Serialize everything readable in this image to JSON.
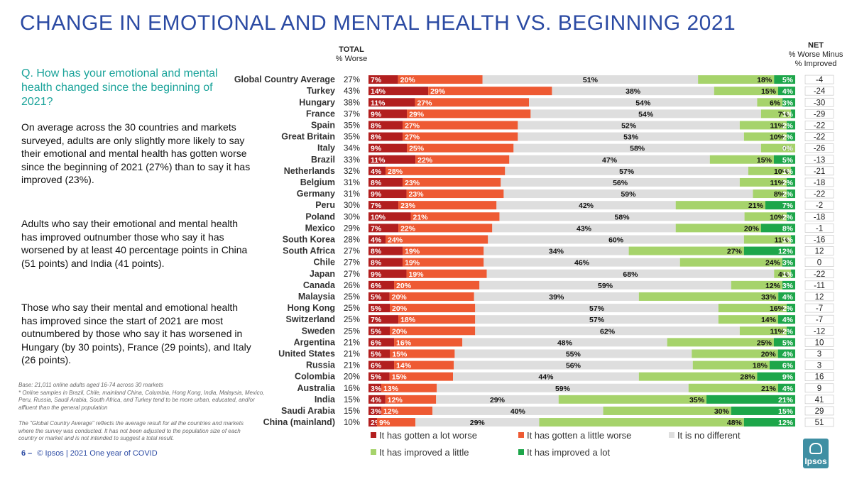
{
  "title": "CHANGE IN EMOTIONAL AND MENTAL HEALTH VS. BEGINNING 2021",
  "question": "Q. How has your emotional and mental health changed since the beginning of 2021?",
  "paragraphs": [
    "On average across the 30 countries and markets surveyed, adults are only slightly more likely to say their emotional and mental health has gotten worse since the beginning of 2021 (27%) than to say it has improved (23%).",
    "Adults who say their emotional and mental health has improved outnumber those who say it has worsened by at least 40 percentage points in China (51 points) and India (41 points).",
    "Those who say their mental and emotional health has improved since the start of 2021 are most outnumbered by those who say it has worsened in Hungary (by 30 points), France (29 points), and Italy (26 points)."
  ],
  "base_note": "Base: 21,011 online adults aged 16-74 across 30 markets\n* Online samples in Brazil, Chile, mainland China, Columbia, Hong Kong, India, Malaysia, Mexico, Peru, Russia, Saudi Arabia, South Africa, and Turkey tend to be more urban, educated, and/or affluent than the general population",
  "avg_note": "The \"Global Country Average\" reflects the average result for all the countries and markets where the survey was conducted. It has not been adjusted to the population size of each country or market and is not intended to suggest a total result.",
  "footer": {
    "page": "6 –",
    "text": "© Ipsos | 2021 One year of COVID"
  },
  "logo_text": "Ipsos",
  "headers": {
    "total_bold": "TOTAL",
    "total_sub": "% Worse",
    "net_bold": "NET",
    "net_sub1": "% Worse Minus",
    "net_sub2": "% Improved"
  },
  "colors": {
    "lot_worse": "#b21f1f",
    "little_worse": "#ee5a33",
    "no_diff": "#dedede",
    "improved_little": "#a6d36b",
    "improved_lot": "#1da64a",
    "title": "#2b4aa3",
    "question": "#1aa39a"
  },
  "chart_data": {
    "type": "bar",
    "orientation": "horizontal",
    "stacked": true,
    "xlim": [
      0,
      100
    ],
    "series_names": [
      "It has gotten a lot worse",
      "It has gotten a little worse",
      "It is no different",
      "It has improved a little",
      "It has improved a lot"
    ],
    "categories": [
      "Global Country Average",
      "Turkey",
      "Hungary",
      "France",
      "Spain",
      "Great Britain",
      "Italy",
      "Brazil",
      "Netherlands",
      "Belgium",
      "Germany",
      "Peru",
      "Poland",
      "Mexico",
      "South Korea",
      "South Africa",
      "Chile",
      "Japan",
      "Canada",
      "Malaysia",
      "Hong Kong",
      "Switzerland",
      "Sweden",
      "Argentina",
      "United States",
      "Russia",
      "Colombia",
      "Australia",
      "India",
      "Saudi Arabia",
      "China (mainland)"
    ],
    "total_worse": [
      "27%",
      "43%",
      "38%",
      "37%",
      "35%",
      "35%",
      "34%",
      "33%",
      "32%",
      "31%",
      "31%",
      "30%",
      "30%",
      "29%",
      "28%",
      "27%",
      "27%",
      "27%",
      "26%",
      "25%",
      "25%",
      "25%",
      "25%",
      "21%",
      "21%",
      "21%",
      "20%",
      "16%",
      "15%",
      "15%",
      "10%"
    ],
    "net": [
      "-4",
      "-24",
      "-30",
      "-29",
      "-22",
      "-22",
      "-26",
      "-13",
      "-21",
      "-18",
      "-22",
      "-2",
      "-18",
      "-1",
      "-16",
      "12",
      "0",
      "-22",
      "-11",
      "12",
      "-7",
      "-7",
      "-12",
      "10",
      "3",
      "3",
      "16",
      "9",
      "41",
      "29",
      "51"
    ],
    "series": [
      {
        "name": "It has gotten a lot worse",
        "values": [
          7,
          14,
          11,
          9,
          8,
          8,
          9,
          11,
          4,
          8,
          9,
          7,
          10,
          7,
          4,
          8,
          8,
          9,
          6,
          5,
          5,
          7,
          5,
          6,
          5,
          6,
          5,
          3,
          4,
          3,
          2
        ]
      },
      {
        "name": "It has gotten a little worse",
        "values": [
          20,
          29,
          27,
          29,
          27,
          27,
          25,
          22,
          28,
          23,
          23,
          23,
          21,
          22,
          24,
          19,
          19,
          19,
          20,
          20,
          20,
          18,
          20,
          16,
          15,
          14,
          15,
          13,
          12,
          12,
          9
        ]
      },
      {
        "name": "It is no different",
        "values": [
          51,
          38,
          54,
          54,
          52,
          53,
          58,
          47,
          57,
          56,
          59,
          42,
          58,
          43,
          60,
          34,
          46,
          68,
          59,
          39,
          57,
          57,
          62,
          48,
          55,
          56,
          44,
          59,
          29,
          40,
          29
        ]
      },
      {
        "name": "It has improved a little",
        "values": [
          18,
          15,
          6,
          7,
          11,
          10,
          8,
          15,
          10,
          11,
          8,
          21,
          10,
          20,
          11,
          27,
          24,
          4,
          12,
          33,
          16,
          14,
          11,
          25,
          20,
          18,
          28,
          21,
          35,
          30,
          48
        ]
      },
      {
        "name": "It has improved a lot",
        "values": [
          5,
          4,
          3,
          1,
          2,
          2,
          0,
          5,
          1,
          2,
          2,
          7,
          2,
          8,
          1,
          12,
          3,
          1,
          3,
          4,
          2,
          4,
          2,
          5,
          4,
          6,
          9,
          4,
          21,
          15,
          12
        ]
      }
    ]
  }
}
